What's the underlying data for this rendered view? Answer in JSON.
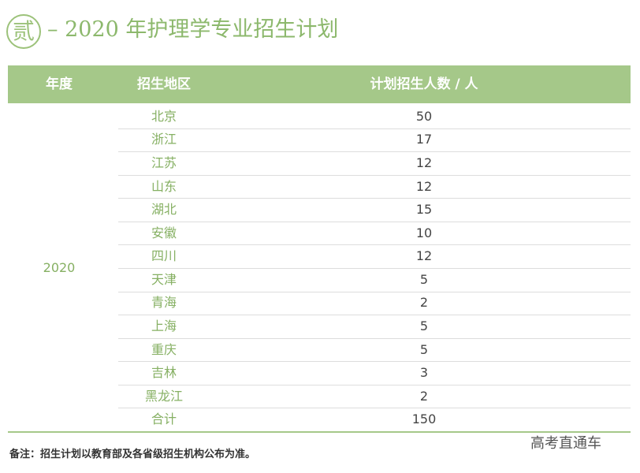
{
  "header": {
    "badge": "贰",
    "title": "– 2020 年护理学专业招生计划"
  },
  "table": {
    "columns": [
      "年度",
      "招生地区",
      "计划招生人数 / 人"
    ],
    "year": "2020",
    "rows": [
      [
        "北京",
        50
      ],
      [
        "浙江",
        17
      ],
      [
        "江苏",
        12
      ],
      [
        "山东",
        12
      ],
      [
        "湖北",
        15
      ],
      [
        "安徽",
        10
      ],
      [
        "四川",
        12
      ],
      [
        "天津",
        5
      ],
      [
        "青海",
        2
      ],
      [
        "上海",
        5
      ],
      [
        "重庆",
        5
      ],
      [
        "吉林",
        3
      ],
      [
        "黑龙江",
        2
      ],
      [
        "合计",
        150
      ]
    ]
  },
  "footnote": "备注：招生计划以教育部及各省级招生机构公布为准。",
  "watermark": "高考直通车"
}
